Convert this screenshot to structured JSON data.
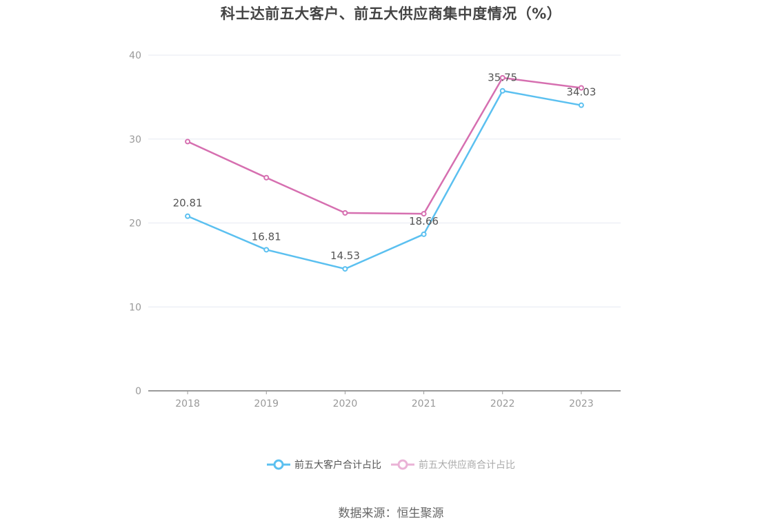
{
  "title": "科士达前五大客户、前五大供应商集中度情况（%）",
  "source": "数据来源：恒生聚源",
  "colors": {
    "customers": "#5bc0f0",
    "suppliers": "#d66fb0",
    "grid": "#e6e9f2",
    "axis": "#999999"
  },
  "legend": [
    {
      "label": "前五大客户合计占比"
    },
    {
      "label": "前五大供应商合计占比"
    }
  ],
  "chart_data": {
    "type": "line",
    "title": "科士达前五大客户、前五大供应商集中度情况（%）",
    "xlabel": "",
    "ylabel": "",
    "categories": [
      "2018",
      "2019",
      "2020",
      "2021",
      "2022",
      "2023"
    ],
    "ylim": [
      0,
      40
    ],
    "yticks": [
      0,
      10,
      20,
      30,
      40
    ],
    "grid": true,
    "legend_position": "bottom",
    "series": [
      {
        "name": "前五大客户合计占比",
        "values": [
          20.81,
          16.81,
          14.53,
          18.66,
          35.75,
          34.03
        ],
        "labels_shown": true
      },
      {
        "name": "前五大供应商合计占比",
        "values": [
          29.7,
          25.4,
          21.2,
          21.1,
          37.3,
          36.1
        ],
        "labels_shown": false
      }
    ]
  }
}
